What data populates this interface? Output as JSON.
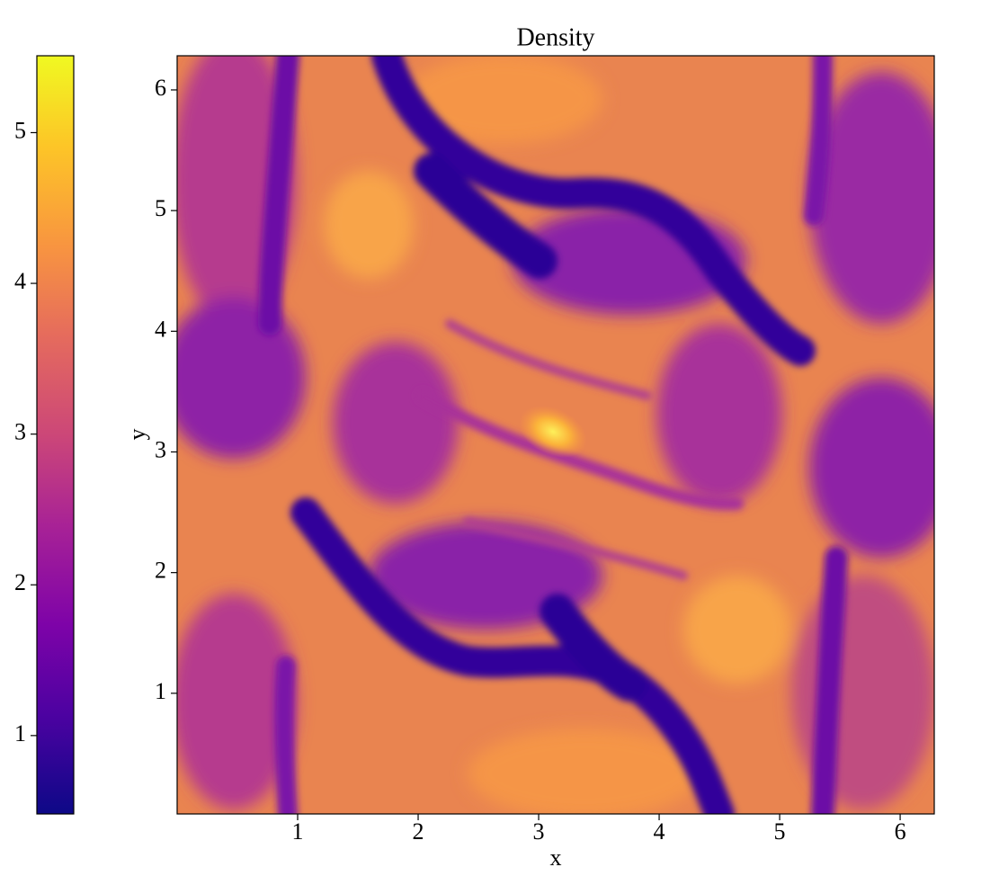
{
  "chart_data": {
    "type": "heatmap",
    "title": "Density",
    "x_label": "x",
    "y_label": "y",
    "xlim": [
      0,
      6.283
    ],
    "ylim": [
      0,
      6.283
    ],
    "xticks": [
      1,
      2,
      3,
      4,
      5,
      6
    ],
    "yticks": [
      1,
      2,
      3,
      4,
      5,
      6
    ],
    "colormap": "plasma",
    "clim": [
      0.48,
      5.51
    ],
    "colorbar_ticks": [
      1,
      2,
      3,
      4,
      5
    ]
  }
}
